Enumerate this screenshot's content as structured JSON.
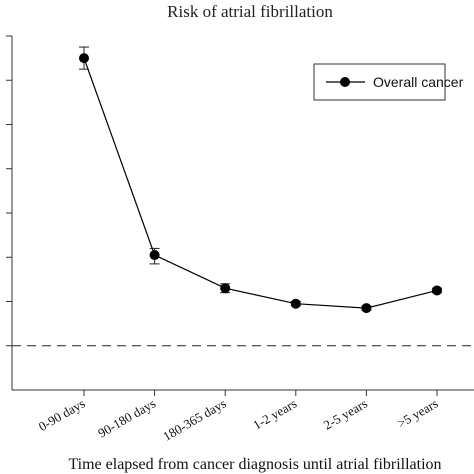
{
  "chart_data": {
    "type": "line",
    "title": "Risk of atrial fibrillation",
    "xlabel": "Time elapsed from cancer diagnosis until atrial fibrillation",
    "ylabel": "",
    "categories": [
      "0-90 days",
      "90-180 days",
      "180-365 days",
      "1-2 years",
      "2-5 years",
      ">5 years"
    ],
    "series": [
      {
        "name": "Overall cancer",
        "values": [
          7.5,
          3.05,
          2.3,
          1.95,
          1.85,
          2.25
        ],
        "error_low": [
          7.25,
          2.85,
          2.2,
          1.9,
          1.8,
          2.2
        ],
        "error_high": [
          7.75,
          3.2,
          2.4,
          2.0,
          1.9,
          2.3
        ],
        "color": "#000000"
      }
    ],
    "ylim": [
      0,
      8.0
    ],
    "reference_line": {
      "y": 1.0,
      "style": "dashed"
    },
    "grid": false,
    "legend": {
      "placement": "top-right"
    }
  }
}
